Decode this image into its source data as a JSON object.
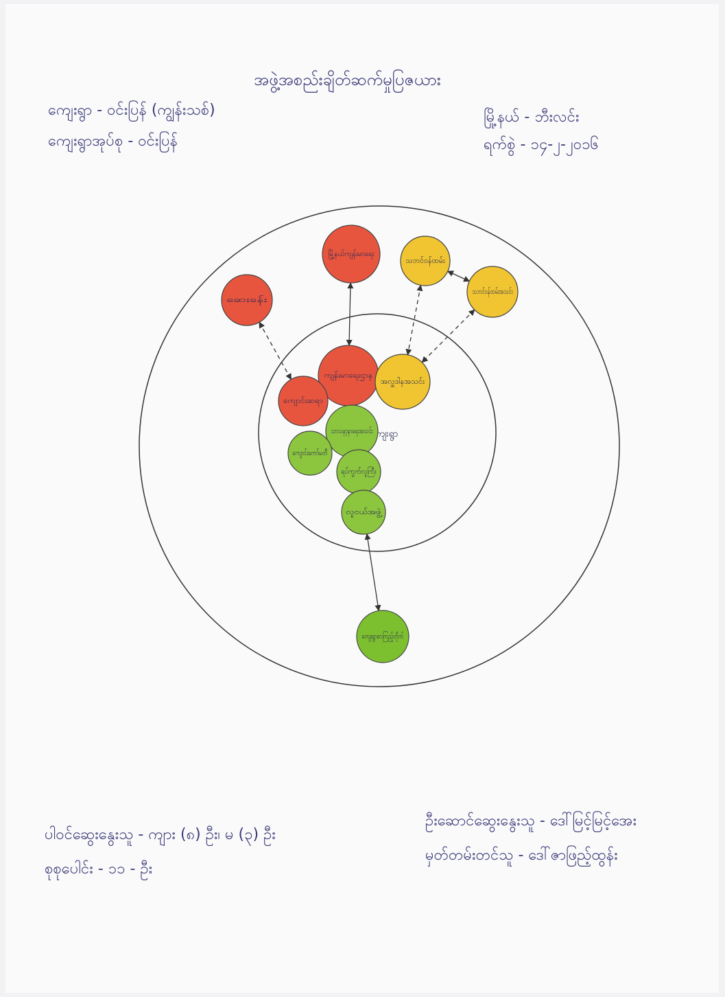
{
  "header": {
    "title": "အဖွဲ့အစည်းချိတ်ဆက်မှုပြဇယား",
    "village": "ကျေးရွာ - ဝင်းပြန် (ကျွန်းသစ်)",
    "village_tract": "ကျေးရွာအုပ်စု - ဝင်းပြန်",
    "township": "မြို့နယ် - ဘီးလင်း",
    "date": "ရက်စွဲ - ၁၄-၂-၂၀၁၆"
  },
  "diagram": {
    "center_label": "ကျေးရွာ",
    "nodes": [
      {
        "label": "ဆေးခန်း",
        "color": "#e8553f"
      },
      {
        "label": "မြို့နယ်ကျန်းမာရေး",
        "color": "#e8553f"
      },
      {
        "label": "သဘင်ဝန်ထမ်း",
        "color": "#f0c531"
      },
      {
        "label": "သဘင်ဝန်ထမ်းအသင်း",
        "color": "#f0c531"
      },
      {
        "label": "ကျန်းမာရေးဌာန",
        "color": "#e8553f"
      },
      {
        "label": "အလှူဒါနအသင်း",
        "color": "#f0c531"
      },
      {
        "label": "ကျောင်းဆရာ",
        "color": "#e8553f"
      },
      {
        "label": "သာသနာ့နာရေးအသင်း",
        "color": "#8cc63f"
      },
      {
        "label": "ကျောင်းကော်မတီ",
        "color": "#8cc63f"
      },
      {
        "label": "ရပ်ကွက်လူကြီး",
        "color": "#8cc63f"
      },
      {
        "label": "လူငယ်အဖွဲ့",
        "color": "#8cc63f"
      },
      {
        "label": "ကျေးရွာစာကြည့်တိုက်",
        "color": "#7cbf2f"
      }
    ]
  },
  "footer": {
    "participants": "ပါဝင်ဆွေးနွေးသူ - ကျား (၈) ဦး၊ မ (၃) ဦး",
    "total": "စုစုပေါင်း - ၁၁ - ဦး",
    "facilitator": "ဦးဆောင်ဆွေးနွေးသူ - ဒေါ်မြင့်မြင့်အေး",
    "recorder": "မှတ်တမ်းတင်သူ - ဒေါ်ဇာဖြည့်ထွန်း"
  }
}
